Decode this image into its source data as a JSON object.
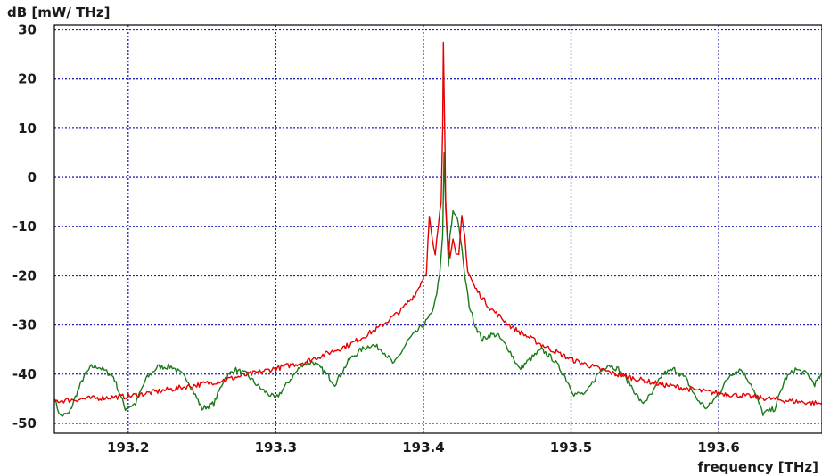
{
  "chart_data": {
    "type": "line",
    "ylabel": "dB [mW/ THz]",
    "xlabel": "frequency [THz]",
    "xlim": [
      193.15,
      193.67
    ],
    "ylim": [
      -52,
      31
    ],
    "xticks": [
      193.2,
      193.3,
      193.4,
      193.5,
      193.6
    ],
    "xtick_labels": [
      "193.2",
      "193.3",
      "193.4",
      "193.5",
      "193.6"
    ],
    "yticks": [
      30,
      20,
      10,
      0,
      -10,
      -20,
      -30,
      -40,
      -50
    ],
    "ytick_labels": [
      "30",
      "20",
      "10",
      "0",
      "-10",
      "-20",
      "-30",
      "-40",
      "-50"
    ],
    "grid": true,
    "series": [
      {
        "color": "#1a7a1a",
        "x": [
          193.15,
          193.154,
          193.16,
          193.165,
          193.17,
          193.175,
          193.18,
          193.19,
          193.198,
          193.205,
          193.212,
          193.22,
          193.23,
          193.24,
          193.25,
          193.258,
          193.265,
          193.272,
          193.28,
          193.29,
          193.3,
          193.31,
          193.318,
          193.325,
          193.333,
          193.34,
          193.35,
          193.358,
          193.365,
          193.372,
          193.38,
          193.39,
          193.4,
          193.405,
          193.408,
          193.411,
          193.413,
          193.414,
          193.415,
          193.416,
          193.417,
          193.418,
          193.42,
          193.423,
          193.425,
          193.428,
          193.431,
          193.435,
          193.44,
          193.445,
          193.45,
          193.458,
          193.465,
          193.472,
          193.48,
          193.488,
          193.495,
          193.502,
          193.51,
          193.518,
          193.525,
          193.532,
          193.54,
          193.548,
          193.555,
          193.562,
          193.57,
          193.578,
          193.585,
          193.592,
          193.6,
          193.608,
          193.615,
          193.622,
          193.63,
          193.638,
          193.645,
          193.652,
          193.66,
          193.665,
          193.67
        ],
        "y": [
          -45,
          -48.5,
          -48,
          -44,
          -40.5,
          -38.5,
          -38.5,
          -40.5,
          -47,
          -46,
          -41,
          -38.5,
          -38.5,
          -41,
          -47,
          -46,
          -41,
          -39,
          -40,
          -43,
          -45,
          -41,
          -38,
          -37.5,
          -39.5,
          -42,
          -37,
          -35,
          -34,
          -35,
          -38,
          -33,
          -30,
          -28,
          -25,
          -20,
          -12,
          5,
          -6,
          -12,
          -18,
          -12,
          -7,
          -8,
          -12,
          -20,
          -26,
          -30,
          -33,
          -32,
          -32,
          -35,
          -39,
          -37,
          -35,
          -37,
          -40,
          -44,
          -44,
          -40,
          -38,
          -39,
          -42,
          -46,
          -44,
          -40,
          -39,
          -41,
          -45,
          -47,
          -44,
          -40,
          -39,
          -42,
          -48,
          -47,
          -41,
          -39,
          -40,
          -42,
          -40
        ]
      },
      {
        "color": "#e60000",
        "x": [
          193.15,
          193.17,
          193.2,
          193.23,
          193.26,
          193.29,
          193.32,
          193.35,
          193.37,
          193.385,
          193.395,
          193.402,
          193.404,
          193.406,
          193.408,
          193.41,
          193.412,
          193.413,
          193.4135,
          193.414,
          193.4145,
          193.415,
          193.416,
          193.418,
          193.42,
          193.422,
          193.424,
          193.426,
          193.428,
          193.43,
          193.435,
          193.445,
          193.46,
          193.48,
          193.5,
          193.53,
          193.56,
          193.59,
          193.62,
          193.65,
          193.67
        ],
        "y": [
          -45.5,
          -45,
          -44.5,
          -43,
          -41.5,
          -39.5,
          -37.5,
          -34,
          -30.5,
          -27,
          -23.5,
          -19,
          -8,
          -13,
          -16,
          -10,
          -5,
          10,
          28,
          18,
          8,
          -4,
          -11,
          -16,
          -12,
          -16,
          -16,
          -8,
          -12,
          -19,
          -22.5,
          -26.5,
          -30.5,
          -34,
          -37,
          -40,
          -42,
          -43.5,
          -44.5,
          -45.5,
          -46
        ]
      }
    ]
  }
}
